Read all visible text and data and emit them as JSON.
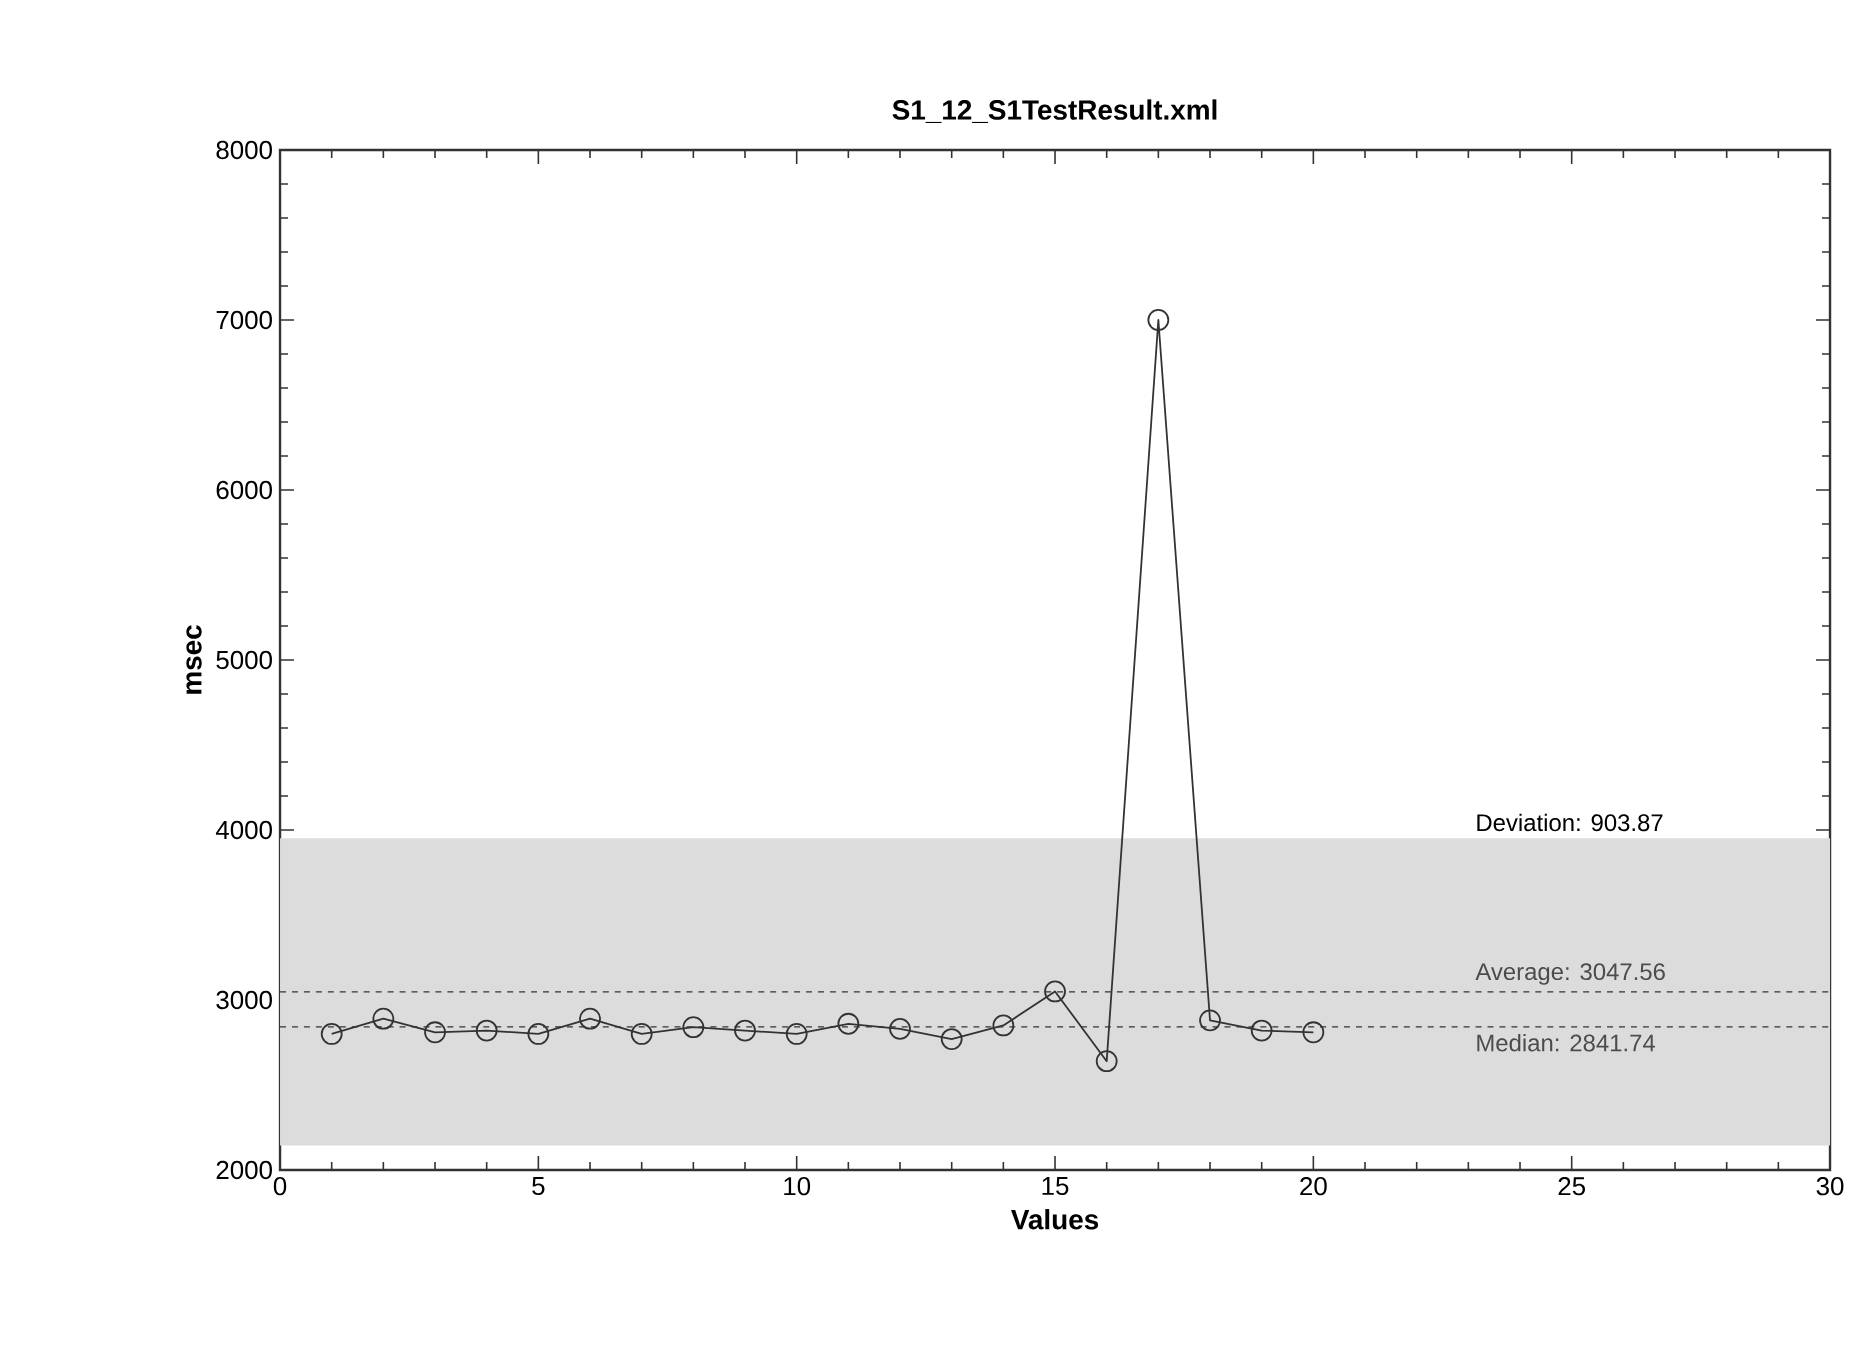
{
  "chart_data": {
    "type": "line",
    "title": "S1_12_S1TestResult.xml",
    "xlabel": "Values",
    "ylabel": "msec",
    "x": [
      1,
      2,
      3,
      4,
      5,
      6,
      7,
      8,
      9,
      10,
      11,
      12,
      13,
      14,
      15,
      16,
      17,
      18,
      19,
      20
    ],
    "series": [
      {
        "color": "#333333",
        "values": [
          2800,
          2890,
          2810,
          2820,
          2800,
          2890,
          2800,
          2840,
          2820,
          2800,
          2860,
          2830,
          2770,
          2850,
          3050,
          2640,
          7000,
          2880,
          2820,
          2810
        ]
      }
    ],
    "xlim": [
      0,
      30
    ],
    "ylim": [
      2000,
      8000
    ],
    "xticks": [
      0,
      5,
      10,
      15,
      20,
      25,
      30
    ],
    "yticks": [
      2000,
      3000,
      4000,
      5000,
      6000,
      7000,
      8000
    ],
    "bands": [
      {
        "axis": "y",
        "from": 2143.69,
        "to": 3951.43,
        "label": "Deviation: 903.87",
        "color": "#dcdcdc"
      }
    ],
    "ref_lines": [
      {
        "axis": "y",
        "value": 3047.56,
        "label": "Average: 3047.56",
        "color": "#333333",
        "line_style": "dashed"
      },
      {
        "axis": "y",
        "value": 2841.74,
        "label": "Median: 2841.74",
        "color": "#333333",
        "line_style": "dashed"
      }
    ],
    "marker": "circle",
    "line_style": "solid"
  }
}
